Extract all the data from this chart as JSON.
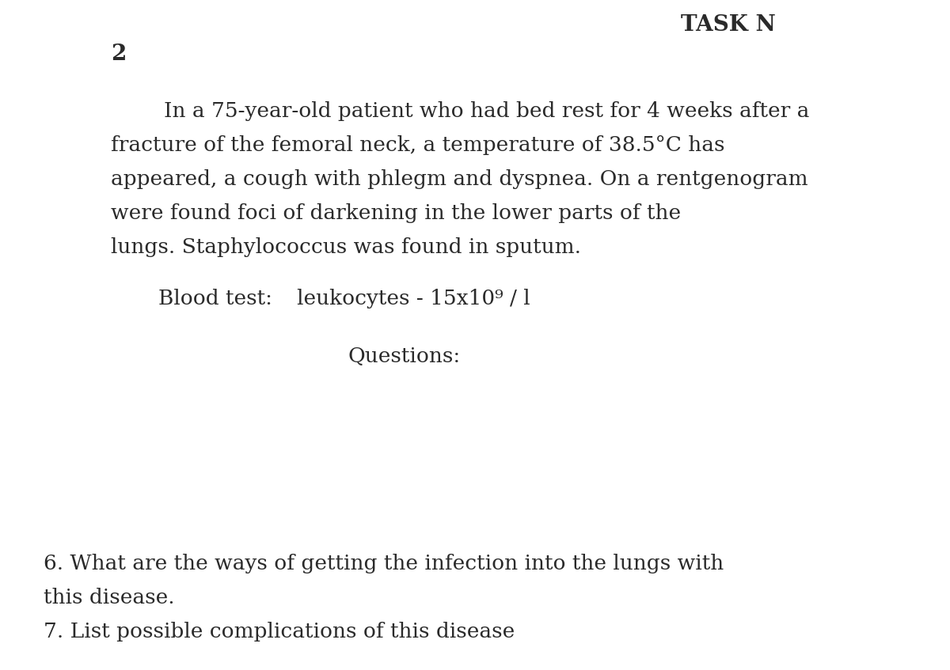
{
  "background_color": "#ffffff",
  "title": "TASK N",
  "task_number": "2",
  "body_text_lines": [
    "        In a 75-year-old patient who had bed rest for 4 weeks after a",
    "fracture of the femoral neck, a temperature of 38.5°C has",
    "appeared, a cough with phlegm and dyspnea. On a rentgenogram",
    "were found foci of darkening in the lower parts of the",
    "lungs. Staphylococcus was found in sputum."
  ],
  "blood_test_label": "Blood test:",
  "blood_test_value": "   leukocytes - 15x10⁹ / l",
  "questions_label": "Questions:",
  "question6": "6. What are the ways of getting the infection into the lungs with",
  "question6_line2": "this disease.",
  "question7": "7. List possible complications of this disease",
  "font_color": "#2a2a2a",
  "font_family": "serif",
  "body_fontsize": 19,
  "blood_test_fontsize": 19,
  "questions_fontsize": 19,
  "title_fontsize": 20,
  "task_number_fontsize": 20
}
